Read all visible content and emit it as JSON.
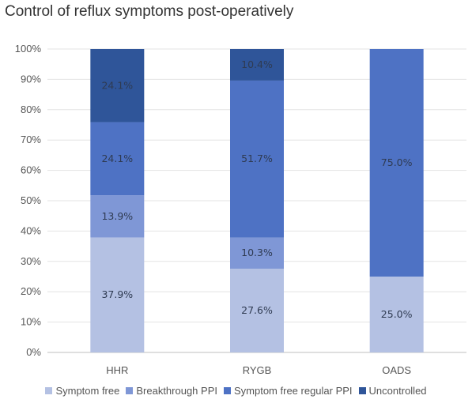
{
  "chart_data": {
    "type": "bar",
    "stacked": true,
    "title": "Control of reflux symptoms post-operatively",
    "categories": [
      "HHR",
      "RYGB",
      "OADS"
    ],
    "yticks": [
      "0%",
      "10%",
      "20%",
      "30%",
      "40%",
      "50%",
      "60%",
      "70%",
      "80%",
      "90%",
      "100%"
    ],
    "ylim": [
      0,
      100
    ],
    "legend_position": "bottom",
    "series": [
      {
        "name": "Symptom free",
        "color": "#b4c1e3",
        "values": [
          37.9,
          27.6,
          25.0
        ],
        "labels": [
          "37.9%",
          "27.6%",
          "25.0%"
        ]
      },
      {
        "name": "Breakthrough PPI",
        "color": "#7f97d6",
        "values": [
          13.9,
          10.3,
          0
        ],
        "labels": [
          "13.9%",
          "10.3%",
          ""
        ]
      },
      {
        "name": "Symptom free regular PPI",
        "color": "#4e72c4",
        "values": [
          24.1,
          51.7,
          75.0
        ],
        "labels": [
          "24.1%",
          "51.7%",
          "75.0%"
        ]
      },
      {
        "name": "Uncontrolled",
        "color": "#2f5599",
        "values": [
          24.1,
          10.4,
          0
        ],
        "labels": [
          "24.1%",
          "10.4%",
          ""
        ]
      }
    ]
  }
}
